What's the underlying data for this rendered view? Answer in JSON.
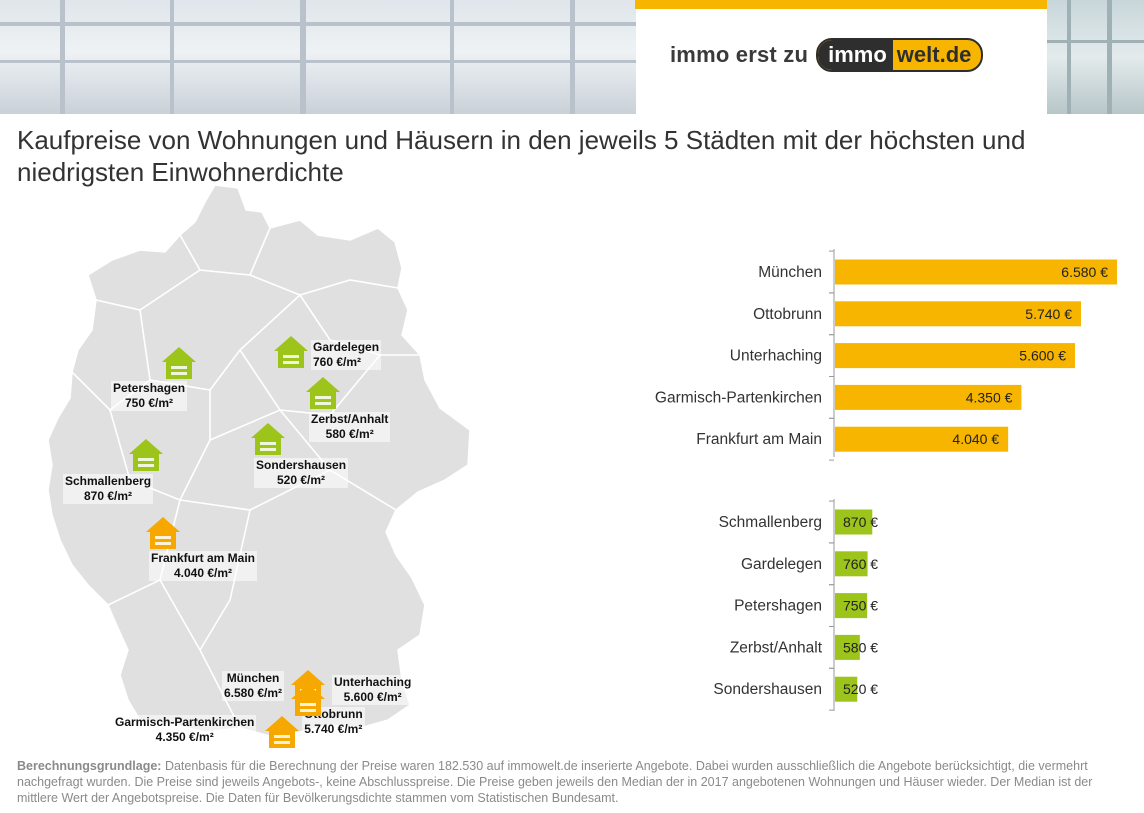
{
  "header": {
    "logo_tagline": "immo erst zu",
    "logo_brand_dark": "immo",
    "logo_brand_light": "welt.de",
    "accent_color": "#f7b500"
  },
  "title": "Kaufpreise von Wohnungen und Häusern in den jeweils 5 Städten mit der höchsten und niedrigsten Einwohnerdichte",
  "map": {
    "icon_color_high": "#f7a800",
    "icon_color_low": "#9dc41a",
    "cities": [
      {
        "name": "Gardelegen",
        "price": "760 €/m²",
        "group": "low"
      },
      {
        "name": "Petershagen",
        "price": "750 €/m²",
        "group": "low"
      },
      {
        "name": "Zerbst/Anhalt",
        "price": "580 €/m²",
        "group": "low"
      },
      {
        "name": "Sondershausen",
        "price": "520 €/m²",
        "group": "low"
      },
      {
        "name": "Schmallenberg",
        "price": "870 €/m²",
        "group": "low"
      },
      {
        "name": "Frankfurt am Main",
        "price": "4.040 €/m²",
        "group": "high"
      },
      {
        "name": "München",
        "price": "6.580 €/m²",
        "group": "high"
      },
      {
        "name": "Unterhaching",
        "price": "5.600 €/m²",
        "group": "high"
      },
      {
        "name": "Ottobrunn",
        "price": "5.740 €/m²",
        "group": "high"
      },
      {
        "name": "Garmisch-Partenkirchen",
        "price": "4.350 €/m²",
        "group": "high"
      }
    ]
  },
  "chart_data": {
    "type": "bar",
    "orientation": "horizontal",
    "unit": "€",
    "xlim": [
      0,
      6580
    ],
    "series": [
      {
        "group": "high",
        "color": "#f7b500",
        "categories": [
          "München",
          "Ottobrunn",
          "Unterhaching",
          "Garmisch-Partenkirchen",
          "Frankfurt am Main"
        ],
        "values": [
          6580,
          5740,
          5600,
          4350,
          4040
        ],
        "labels": [
          "6.580 €",
          "5.740 €",
          "5.600 €",
          "4.350 €",
          "4.040 €"
        ]
      },
      {
        "group": "low",
        "color": "#9dc41a",
        "categories": [
          "Schmallenberg",
          "Gardelegen",
          "Petershagen",
          "Zerbst/Anhalt",
          "Sondershausen"
        ],
        "values": [
          870,
          760,
          750,
          580,
          520
        ],
        "labels": [
          "870 €",
          "760 €",
          "750 €",
          "580 €",
          "520 €"
        ]
      }
    ]
  },
  "footnote": {
    "label": "Berechnungsgrundlage:",
    "text": "Datenbasis für die Berechnung der Preise waren 182.530 auf immowelt.de inserierte Angebote. Dabei wurden ausschließlich die Angebote berücksichtigt, die vermehrt nachgefragt wurden. Die Preise sind jeweils Angebots-, keine Abschlusspreise. Die Preise geben jeweils den Median der in 2017 angebotenen Wohnungen und Häuser wieder. Der Median ist der mittlere Wert der Angebotspreise. Die Daten für Bevölkerungsdichte stammen vom Statistischen Bundesamt."
  }
}
